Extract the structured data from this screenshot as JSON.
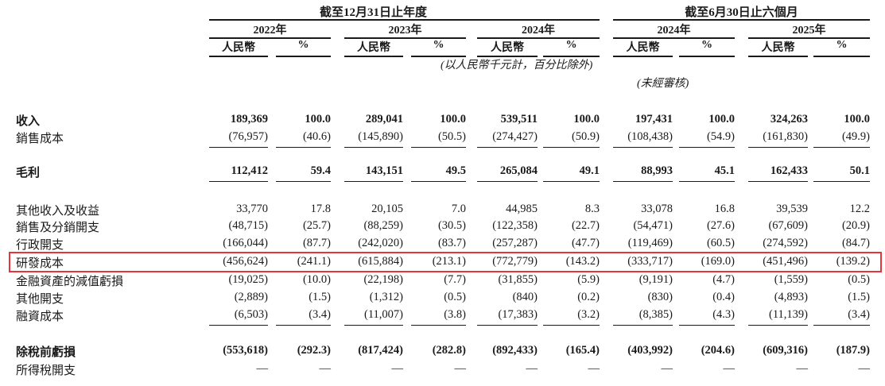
{
  "header": {
    "period_year_end": "截至12月31日止年度",
    "period_six_months": "截至6月30日止六個月",
    "years": [
      "2022年",
      "2023年",
      "2024年",
      "2024年",
      "2025年"
    ],
    "col_rmb": "人民幣",
    "col_pct": "%",
    "unit_note": "(以人民幣千元計，百分比除外)",
    "unaudited_note": "(未經審核)"
  },
  "rows": [
    {
      "label": "收入",
      "bold": true,
      "values": [
        "189,369",
        "100.0",
        "289,041",
        "100.0",
        "539,511",
        "100.0",
        "197,431",
        "100.0",
        "324,263",
        "100.0"
      ]
    },
    {
      "label": "銷售成本",
      "bold": false,
      "values": [
        "(76,957)",
        "(40.6)",
        "(145,890)",
        "(50.5)",
        "(274,427)",
        "(50.9)",
        "(108,438)",
        "(54.9)",
        "(161,830)",
        "(49.9)"
      ]
    },
    {
      "label": "毛利",
      "bold": true,
      "values": [
        "112,412",
        "59.4",
        "143,151",
        "49.5",
        "265,084",
        "49.1",
        "88,993",
        "45.1",
        "162,433",
        "50.1"
      ]
    },
    {
      "label": "其他收入及收益",
      "bold": false,
      "values": [
        "33,770",
        "17.8",
        "20,105",
        "7.0",
        "44,985",
        "8.3",
        "33,078",
        "16.8",
        "39,539",
        "12.2"
      ]
    },
    {
      "label": "銷售及分銷開支",
      "bold": false,
      "values": [
        "(48,715)",
        "(25.7)",
        "(88,259)",
        "(30.5)",
        "(122,358)",
        "(22.7)",
        "(54,471)",
        "(27.6)",
        "(67,609)",
        "(20.9)"
      ]
    },
    {
      "label": "行政開支",
      "bold": false,
      "values": [
        "(166,044)",
        "(87.7)",
        "(242,020)",
        "(83.7)",
        "(257,287)",
        "(47.7)",
        "(119,469)",
        "(60.5)",
        "(274,592)",
        "(84.7)"
      ]
    },
    {
      "label": "研發成本",
      "bold": false,
      "highlight": true,
      "values": [
        "(456,624)",
        "(241.1)",
        "(615,884)",
        "(213.1)",
        "(772,779)",
        "(143.2)",
        "(333,717)",
        "(169.0)",
        "(451,496)",
        "(139.2)"
      ]
    },
    {
      "label": "金融資產的減值虧損",
      "bold": false,
      "values": [
        "(19,025)",
        "(10.0)",
        "(22,198)",
        "(7.7)",
        "(31,855)",
        "(5.9)",
        "(9,191)",
        "(4.7)",
        "(1,559)",
        "(0.5)"
      ]
    },
    {
      "label": "其他開支",
      "bold": false,
      "values": [
        "(2,889)",
        "(1.5)",
        "(1,312)",
        "(0.5)",
        "(840)",
        "(0.2)",
        "(830)",
        "(0.4)",
        "(4,893)",
        "(1.5)"
      ]
    },
    {
      "label": "融資成本",
      "bold": false,
      "values": [
        "(6,503)",
        "(3.4)",
        "(11,007)",
        "(3.8)",
        "(17,383)",
        "(3.2)",
        "(8,385)",
        "(4.3)",
        "(11,139)",
        "(3.4)"
      ]
    },
    {
      "label": "除稅前虧損",
      "bold": true,
      "values": [
        "(553,618)",
        "(292.3)",
        "(817,424)",
        "(282.8)",
        "(892,433)",
        "(165.4)",
        "(403,992)",
        "(204.6)",
        "(609,316)",
        "(187.9)"
      ]
    },
    {
      "label": "所得稅開支",
      "bold": false,
      "values": [
        "—",
        "—",
        "—",
        "—",
        "—",
        "—",
        "—",
        "—",
        "—",
        "—"
      ]
    }
  ],
  "colors": {
    "highlight_border": "#e8333a",
    "text": "#1a1a1a"
  }
}
